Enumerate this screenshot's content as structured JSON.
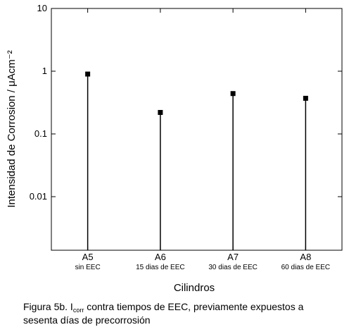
{
  "chart_data": {
    "type": "stem",
    "y_label": "Intensidad de Corrosion / μAcm⁻²",
    "x_label": "Cilindros",
    "categories": [
      "A5",
      "A6",
      "A7",
      "A8"
    ],
    "category_notes": [
      "sin EEC",
      "15 dias de EEC",
      "30 dias de EEC",
      "60 dias de EEC"
    ],
    "values": [
      0.9,
      0.22,
      0.44,
      0.37
    ],
    "color": "#000000",
    "log_y": true,
    "ylim": [
      0.0014,
      10
    ],
    "yticks": [
      10,
      1,
      0.1,
      0.01
    ]
  },
  "caption": {
    "parts": [
      "Figura 5b. I",
      "corr",
      " contra tiempos de EEC, previamente expuestos a",
      "sesenta días de precorrosión"
    ]
  }
}
